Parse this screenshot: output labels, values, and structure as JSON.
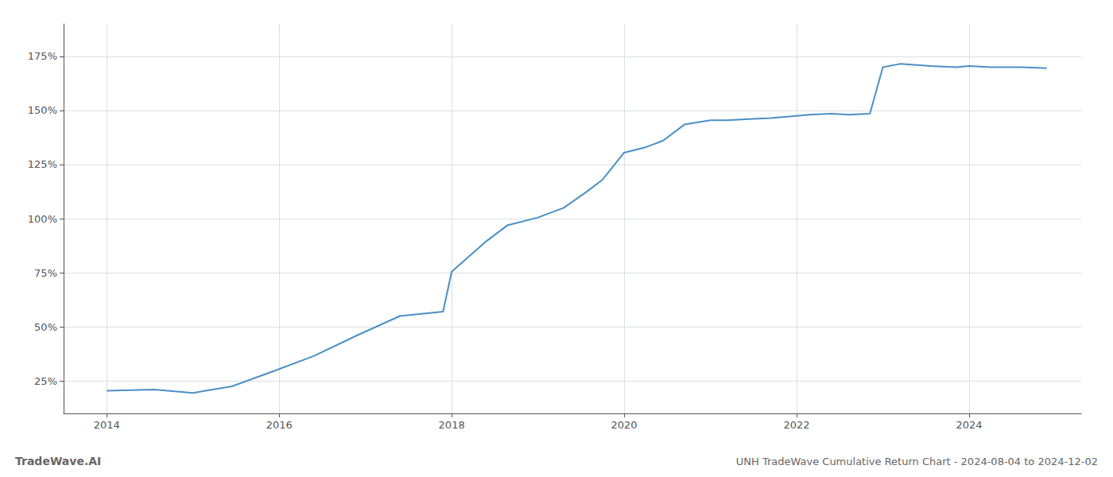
{
  "chart_data": {
    "type": "line",
    "title": "UNH TradeWave Cumulative Return Chart - 2024-08-04 to 2024-12-02",
    "annotations": [
      "TradeWave.AI"
    ],
    "x": [
      2014.0,
      2014.55,
      2015.0,
      2015.45,
      2015.9,
      2016.4,
      2016.9,
      2017.4,
      2017.9,
      2018.0,
      2018.4,
      2018.65,
      2019.0,
      2019.3,
      2019.55,
      2019.75,
      2020.0,
      2020.25,
      2020.45,
      2020.7,
      2021.0,
      2021.2,
      2021.45,
      2021.7,
      2022.0,
      2022.15,
      2022.4,
      2022.6,
      2022.85,
      2023.0,
      2023.2,
      2023.55,
      2023.85,
      2024.0,
      2024.25,
      2024.6,
      2024.9
    ],
    "values": [
      20.5,
      21.0,
      19.5,
      22.5,
      29.0,
      36.5,
      46.0,
      55.0,
      57.0,
      75.5,
      89.5,
      97.0,
      100.5,
      105.0,
      112.0,
      118.0,
      130.5,
      133.0,
      136.0,
      143.5,
      145.5,
      145.5,
      146.0,
      146.5,
      147.5,
      148.0,
      148.5,
      148.0,
      148.5,
      170.0,
      171.5,
      170.5,
      170.0,
      170.5,
      170.0,
      170.0,
      169.5
    ],
    "color": "#4a90c4",
    "xlim": [
      2013.5,
      2025.3
    ],
    "ylim": [
      10,
      190
    ],
    "xticks": [
      2014,
      2016,
      2018,
      2020,
      2022,
      2024
    ],
    "yticks": [
      {
        "value": 25,
        "label": "25%"
      },
      {
        "value": 50,
        "label": "50%"
      },
      {
        "value": 75,
        "label": "75%"
      },
      {
        "value": 100,
        "label": "100%"
      },
      {
        "value": 125,
        "label": "125%"
      },
      {
        "value": 150,
        "label": "150%"
      },
      {
        "value": 175,
        "label": "175%"
      }
    ],
    "grid": true
  }
}
